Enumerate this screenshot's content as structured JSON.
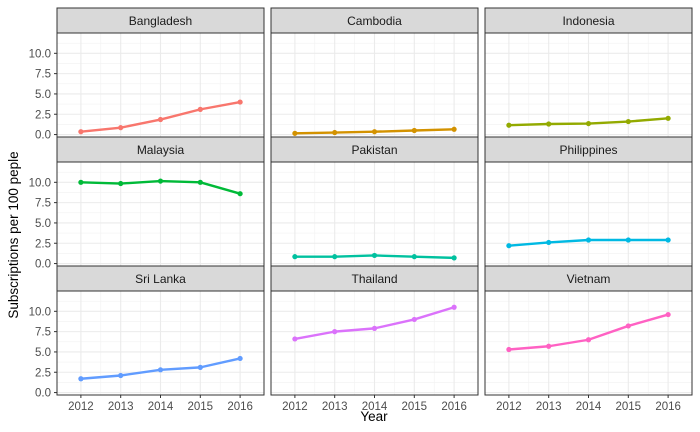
{
  "chart_data": {
    "type": "line",
    "xlabel": "Year",
    "ylabel": "Subscriptions per 100 peple",
    "x": [
      2012,
      2013,
      2014,
      2015,
      2016
    ],
    "ylim": [
      -0.3,
      12.5
    ],
    "yticks": [
      0.0,
      2.5,
      5.0,
      7.5,
      10.0
    ],
    "ytick_labels": [
      "0.0",
      "2.5",
      "5.0",
      "7.5",
      "10.0"
    ],
    "grid": true,
    "legend": "none",
    "facets": [
      {
        "name": "Bangladesh",
        "color": "#F8766D",
        "values": [
          0.35,
          0.85,
          1.85,
          3.1,
          4.0
        ]
      },
      {
        "name": "Cambodia",
        "color": "#D39200",
        "values": [
          0.15,
          0.25,
          0.35,
          0.5,
          0.65
        ]
      },
      {
        "name": "Indonesia",
        "color": "#93AA00",
        "values": [
          1.15,
          1.3,
          1.35,
          1.6,
          2.0
        ]
      },
      {
        "name": "Malaysia",
        "color": "#00BA38",
        "values": [
          10.0,
          9.85,
          10.15,
          10.0,
          8.6
        ]
      },
      {
        "name": "Pakistan",
        "color": "#00C19F",
        "values": [
          0.85,
          0.85,
          1.0,
          0.85,
          0.7
        ]
      },
      {
        "name": "Philippines",
        "color": "#00B9E3",
        "values": [
          2.2,
          2.6,
          2.9,
          2.9,
          2.9
        ]
      },
      {
        "name": "Sri Lanka",
        "color": "#619CFF",
        "values": [
          1.7,
          2.1,
          2.8,
          3.1,
          4.2
        ]
      },
      {
        "name": "Thailand",
        "color": "#DB72FB",
        "values": [
          6.6,
          7.5,
          7.9,
          9.0,
          10.5
        ]
      },
      {
        "name": "Vietnam",
        "color": "#FF61C3",
        "values": [
          5.3,
          5.7,
          6.5,
          8.2,
          9.6
        ]
      }
    ]
  }
}
